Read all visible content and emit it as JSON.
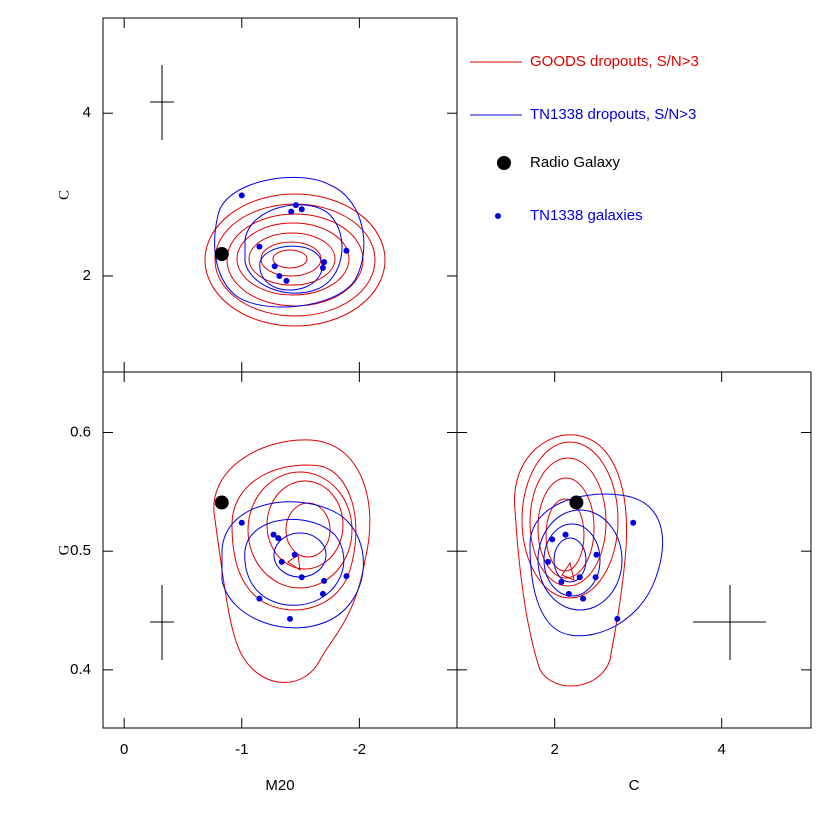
{
  "legend": [
    {
      "name": "GOODS dropouts, S/N>3",
      "color": "#e00000",
      "marker": "line"
    },
    {
      "name": "TN1338 dropouts, S/N>3",
      "color": "#0000e0",
      "marker": "line"
    },
    {
      "name": "Radio Galaxy",
      "color": "#000000",
      "marker": "big-dot"
    },
    {
      "name": "TN1338 galaxies",
      "color": "#0000e0",
      "marker": "dot"
    }
  ],
  "chart_data": [
    {
      "type": "scatter",
      "ylabel": "C",
      "xlim": [
        0.18,
        -2.83
      ],
      "ylim": [
        0.82,
        5.17
      ],
      "xticks": [
        0,
        -1,
        -2
      ],
      "yticks": [
        2,
        4
      ],
      "series": [
        {
          "color": "#0000e0",
          "size": 3,
          "x": [
            -1.0,
            -1.15,
            -1.28,
            -1.32,
            -1.38,
            -1.42,
            -1.46,
            -1.51,
            -1.7,
            -1.69,
            -1.89
          ],
          "values": [
            2.99,
            2.36,
            2.12,
            2.0,
            1.94,
            2.79,
            2.87,
            2.82,
            2.17,
            2.1,
            2.31
          ]
        },
        {
          "color": "#000000",
          "size": 7,
          "x": [
            -0.83
          ],
          "values": [
            2.27
          ]
        }
      ]
    },
    {
      "type": "scatter",
      "xlabel": "M20",
      "ylabel": "G",
      "xlim": [
        0.18,
        -2.83
      ],
      "ylim": [
        0.351,
        0.651
      ],
      "xticks": [
        0,
        -1,
        -2
      ],
      "yticks": [
        0.4,
        0.5,
        0.6
      ],
      "series": [
        {
          "color": "#0000e0",
          "size": 3,
          "x": [
            -1.0,
            -1.27,
            -1.31,
            -1.45,
            -1.34,
            -1.51,
            -1.7,
            -1.89,
            -1.69,
            -1.15,
            -1.41
          ],
          "values": [
            0.524,
            0.514,
            0.511,
            0.497,
            0.491,
            0.478,
            0.475,
            0.479,
            0.464,
            0.46,
            0.443
          ]
        },
        {
          "color": "#000000",
          "size": 7,
          "x": [
            -0.83
          ],
          "values": [
            0.541
          ]
        }
      ]
    },
    {
      "type": "scatter",
      "xlabel": "C",
      "xlim": [
        0.83,
        5.07
      ],
      "ylim": [
        0.351,
        0.651
      ],
      "xticks": [
        2,
        4
      ],
      "yticks": [
        0.4,
        0.5,
        0.6
      ],
      "series": [
        {
          "color": "#0000e0",
          "size": 3,
          "x": [
            2.94,
            1.97,
            2.13,
            2.5,
            1.92,
            2.08,
            2.3,
            2.49,
            2.17,
            2.34,
            2.75
          ],
          "values": [
            0.524,
            0.51,
            0.514,
            0.497,
            0.491,
            0.474,
            0.478,
            0.478,
            0.464,
            0.46,
            0.443
          ]
        },
        {
          "color": "#000000",
          "size": 7,
          "x": [
            2.26
          ],
          "values": [
            0.541
          ]
        }
      ]
    }
  ]
}
